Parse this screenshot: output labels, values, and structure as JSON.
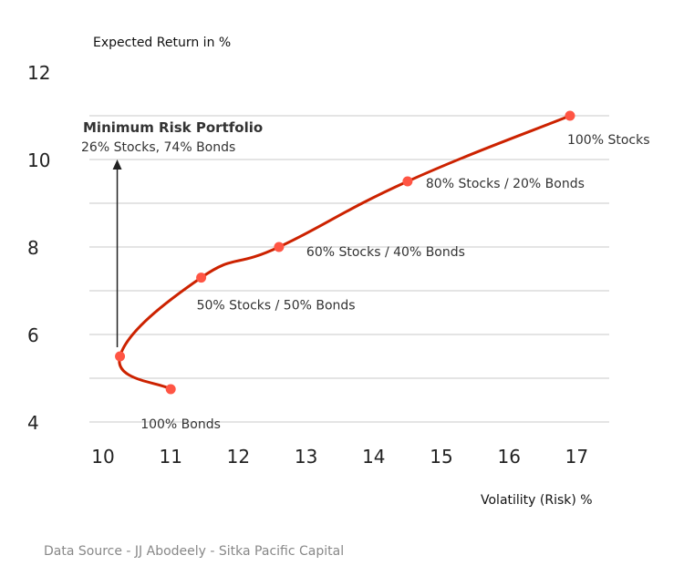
{
  "chart_data": {
    "type": "line",
    "title": "",
    "xlabel": "Volatility (Risk) %",
    "ylabel": "Expected Return in %",
    "xlim": [
      10,
      17
    ],
    "ylim": [
      4,
      12
    ],
    "x_ticks": [
      "10",
      "11",
      "12",
      "13",
      "14",
      "15",
      "16",
      "17"
    ],
    "y_ticks": [
      "4",
      "6",
      "8",
      "10",
      "12"
    ],
    "grid": "horizontal",
    "line_color": "#cc2200",
    "marker_color": "#ff5544",
    "series": [
      {
        "points": [
          {
            "x": 11.0,
            "y": 4.75,
            "label": "100% Bonds"
          },
          {
            "x": 10.25,
            "y": 5.5,
            "label": ""
          },
          {
            "x": 11.45,
            "y": 7.3,
            "label": "50% Stocks /  50% Bonds"
          },
          {
            "x": 12.6,
            "y": 8.0,
            "label": "60% Stocks / 40% Bonds"
          },
          {
            "x": 14.5,
            "y": 9.5,
            "label": "80% Stocks / 20% Bonds"
          },
          {
            "x": 16.9,
            "y": 11.0,
            "label": "100% Stocks"
          }
        ]
      }
    ],
    "annotation": {
      "title": "Minimum Risk Portfolio",
      "subtitle": "26% Stocks, 74% Bonds",
      "x": 10.25,
      "y": 5.5
    }
  },
  "source_text": "Data Source - JJ Abodeely - Sitka Pacific Capital"
}
